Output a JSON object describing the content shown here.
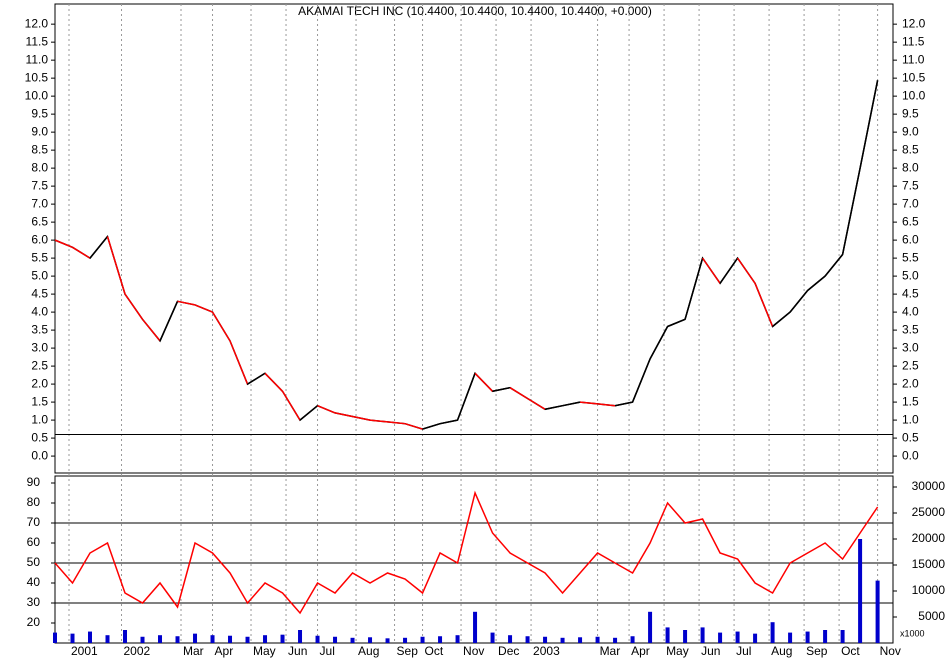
{
  "chart_data": [
    {
      "type": "line",
      "title": "AKAMAI TECH INC (10.4400, 10.4400, 10.4400, 10.4400, +0.000)",
      "x": [
        0,
        0.5,
        1,
        1.5,
        2,
        2.5,
        3,
        3.5,
        4,
        4.5,
        5,
        5.5,
        6,
        6.5,
        7,
        7.5,
        8,
        8.5,
        9,
        9.5,
        10,
        10.5,
        11,
        11.5,
        12,
        12.5,
        13,
        13.5,
        14,
        14.5,
        15,
        15.5,
        16,
        16.5,
        17,
        17.5,
        18,
        18.5,
        19,
        19.5,
        20,
        20.5,
        21,
        21.5,
        22,
        22.5,
        23,
        23.5
      ],
      "values": [
        6.0,
        5.8,
        5.5,
        6.1,
        4.5,
        3.8,
        3.2,
        4.3,
        4.2,
        4.0,
        3.2,
        2.0,
        2.3,
        1.8,
        1.0,
        1.4,
        1.2,
        1.1,
        1.0,
        0.95,
        0.9,
        0.75,
        0.9,
        1.0,
        2.3,
        1.8,
        1.9,
        1.6,
        1.3,
        1.4,
        1.5,
        1.45,
        1.4,
        1.5,
        2.7,
        3.6,
        3.8,
        5.5,
        4.8,
        5.5,
        4.8,
        3.6,
        4.0,
        4.6,
        5.0,
        5.6,
        8.0,
        10.44
      ],
      "color": "#000000",
      "xlim": [
        0,
        23.94
      ],
      "ylim": [
        -0.47,
        12.56
      ],
      "hline": 0.6,
      "yticks": [
        {
          "value": 0,
          "label": "0.0"
        },
        0.5,
        {
          "value": 1,
          "label": "1.0"
        },
        1.5,
        {
          "value": 2,
          "label": "2.0"
        },
        2.5,
        {
          "value": 3,
          "label": "3.0"
        },
        3.5,
        {
          "value": 4,
          "label": "4.0"
        },
        4.5,
        {
          "value": 5,
          "label": "5.0"
        },
        5.5,
        {
          "value": 6,
          "label": "6.0"
        },
        6.5,
        {
          "value": 7,
          "label": "7.0"
        },
        7.5,
        {
          "value": 8,
          "label": "8.0"
        },
        8.5,
        {
          "value": 9,
          "label": "9.0"
        },
        9.5,
        {
          "value": 10,
          "label": "10.0"
        },
        10.5,
        {
          "value": 11,
          "label": "11.0"
        },
        11.5,
        {
          "value": 12,
          "label": "12.0"
        }
      ]
    },
    {
      "type": "combo",
      "x": [
        0,
        0.5,
        1,
        1.5,
        2,
        2.5,
        3,
        3.5,
        4,
        4.5,
        5,
        5.5,
        6,
        6.5,
        7,
        7.5,
        8,
        8.5,
        9,
        9.5,
        10,
        10.5,
        11,
        11.5,
        12,
        12.5,
        13,
        13.5,
        14,
        14.5,
        15,
        15.5,
        16,
        16.5,
        17,
        17.5,
        18,
        18.5,
        19,
        19.5,
        20,
        20.5,
        21,
        21.5,
        22,
        22.5,
        23,
        23.5
      ],
      "series": [
        {
          "color": "#ff0000",
          "values": [
            50,
            40,
            55,
            60,
            35,
            30,
            40,
            28,
            60,
            55,
            45,
            30,
            40,
            35,
            25,
            40,
            35,
            45,
            40,
            45,
            42,
            35,
            55,
            50,
            85,
            65,
            55,
            50,
            45,
            35,
            45,
            55,
            50,
            45,
            60,
            80,
            70,
            72,
            55,
            52,
            40,
            35,
            50,
            55,
            60,
            52,
            65,
            78
          ]
        },
        {
          "color": "#0000cc",
          "axis": "y2",
          "values": [
            2000,
            1800,
            2200,
            1500,
            2500,
            1200,
            1500,
            1300,
            1800,
            1500,
            1400,
            1200,
            1500,
            1600,
            2500,
            1400,
            1200,
            1000,
            1100,
            900,
            1000,
            1200,
            1300,
            1500,
            6000,
            2000,
            1500,
            1300,
            1200,
            1000,
            1100,
            1200,
            1000,
            1300,
            6000,
            3000,
            2500,
            3000,
            2000,
            2200,
            1800,
            4000,
            2000,
            2200,
            2500,
            2500,
            20000,
            12000
          ]
        }
      ],
      "xlim": [
        0,
        23.94
      ],
      "ylim": [
        10,
        93.5
      ],
      "y2lim": [
        0,
        32115
      ],
      "yticks": [
        20,
        30,
        40,
        50,
        60,
        70,
        80,
        90
      ],
      "y2ticks": [
        5000,
        10000,
        15000,
        20000,
        25000,
        30000
      ],
      "hlines": [
        30,
        50,
        70
      ],
      "y2_unit_label": "x1000",
      "xticks": [
        {
          "value": 0.4,
          "label": "2001"
        },
        {
          "value": 1.9,
          "label": "2002"
        },
        {
          "value": 3.6,
          "label": "Mar"
        },
        {
          "value": 4.5,
          "label": "Apr"
        },
        {
          "value": 5.6,
          "label": "May"
        },
        {
          "value": 6.6,
          "label": "Jun"
        },
        {
          "value": 7.5,
          "label": "Jul"
        },
        {
          "value": 8.6,
          "label": "Aug"
        },
        {
          "value": 9.7,
          "label": "Sep"
        },
        {
          "value": 10.5,
          "label": "Oct"
        },
        {
          "value": 11.6,
          "label": "Nov"
        },
        {
          "value": 12.6,
          "label": "Dec"
        },
        {
          "value": 13.6,
          "label": "2003"
        },
        {
          "value": 15.5,
          "label": "Mar"
        },
        {
          "value": 16.4,
          "label": "Apr"
        },
        {
          "value": 17.4,
          "label": "May"
        },
        {
          "value": 18.4,
          "label": "Jun"
        },
        {
          "value": 19.4,
          "label": "Jul"
        },
        {
          "value": 20.4,
          "label": "Aug"
        },
        {
          "value": 21.4,
          "label": "Sep"
        },
        {
          "value": 22.4,
          "label": "Oct"
        },
        {
          "value": 23.5,
          "label": "Nov"
        }
      ]
    }
  ]
}
